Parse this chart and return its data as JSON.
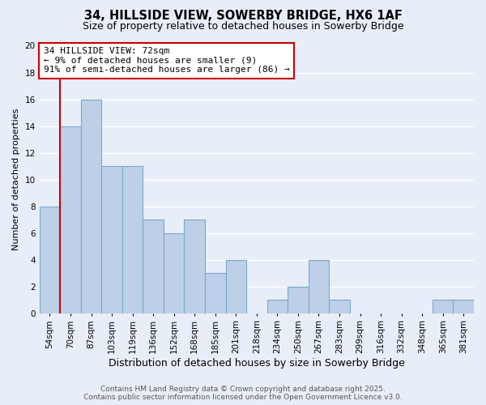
{
  "title": "34, HILLSIDE VIEW, SOWERBY BRIDGE, HX6 1AF",
  "subtitle": "Size of property relative to detached houses in Sowerby Bridge",
  "xlabel": "Distribution of detached houses by size in Sowerby Bridge",
  "ylabel": "Number of detached properties",
  "bar_labels": [
    "54sqm",
    "70sqm",
    "87sqm",
    "103sqm",
    "119sqm",
    "136sqm",
    "152sqm",
    "168sqm",
    "185sqm",
    "201sqm",
    "218sqm",
    "234sqm",
    "250sqm",
    "267sqm",
    "283sqm",
    "299sqm",
    "316sqm",
    "332sqm",
    "348sqm",
    "365sqm",
    "381sqm"
  ],
  "bar_values": [
    8,
    14,
    16,
    11,
    11,
    7,
    6,
    7,
    3,
    4,
    0,
    1,
    2,
    4,
    1,
    0,
    0,
    0,
    0,
    1,
    1
  ],
  "bar_color": "#bdd0e8",
  "bar_edge_color": "#7aa8cc",
  "background_color": "#e8eef8",
  "grid_color": "#ffffff",
  "annotation_box_text": "34 HILLSIDE VIEW: 72sqm\n← 9% of detached houses are smaller (9)\n91% of semi-detached houses are larger (86) →",
  "annotation_box_edgecolor": "#cc0000",
  "annotation_box_facecolor": "#ffffff",
  "vline_color": "#cc0000",
  "vline_index": 1,
  "ylim": [
    0,
    20
  ],
  "yticks": [
    0,
    2,
    4,
    6,
    8,
    10,
    12,
    14,
    16,
    18,
    20
  ],
  "footer_line1": "Contains HM Land Registry data © Crown copyright and database right 2025.",
  "footer_line2": "Contains public sector information licensed under the Open Government Licence v3.0.",
  "title_fontsize": 10.5,
  "subtitle_fontsize": 9,
  "xlabel_fontsize": 9,
  "ylabel_fontsize": 8,
  "tick_fontsize": 7.5,
  "annotation_fontsize": 8,
  "footer_fontsize": 6.5
}
